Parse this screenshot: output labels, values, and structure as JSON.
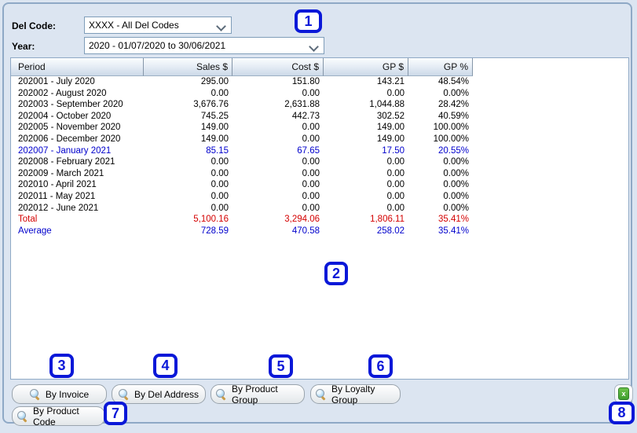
{
  "filters": {
    "del_code_label": "Del Code:",
    "del_code_value": "XXXX - All Del Codes",
    "year_label": "Year:",
    "year_value": "2020 - 01/07/2020 to 30/06/2021"
  },
  "table": {
    "headers": [
      "Period",
      "Sales $",
      "Cost $",
      "GP $",
      "GP %"
    ],
    "rows": [
      {
        "period": "202001 - July 2020",
        "sales": "295.00",
        "cost": "151.80",
        "gp": "143.21",
        "gppct": "48.54%",
        "style": "normal"
      },
      {
        "period": "202002 - August 2020",
        "sales": "0.00",
        "cost": "0.00",
        "gp": "0.00",
        "gppct": "0.00%",
        "style": "normal"
      },
      {
        "period": "202003 - September 2020",
        "sales": "3,676.76",
        "cost": "2,631.88",
        "gp": "1,044.88",
        "gppct": "28.42%",
        "style": "normal"
      },
      {
        "period": "202004 - October 2020",
        "sales": "745.25",
        "cost": "442.73",
        "gp": "302.52",
        "gppct": "40.59%",
        "style": "normal"
      },
      {
        "period": "202005 - November 2020",
        "sales": "149.00",
        "cost": "0.00",
        "gp": "149.00",
        "gppct": "100.00%",
        "style": "normal"
      },
      {
        "period": "202006 - December 2020",
        "sales": "149.00",
        "cost": "0.00",
        "gp": "149.00",
        "gppct": "100.00%",
        "style": "normal"
      },
      {
        "period": "202007 - January 2021",
        "sales": "85.15",
        "cost": "67.65",
        "gp": "17.50",
        "gppct": "20.55%",
        "style": "blue"
      },
      {
        "period": "202008 - February 2021",
        "sales": "0.00",
        "cost": "0.00",
        "gp": "0.00",
        "gppct": "0.00%",
        "style": "normal"
      },
      {
        "period": "202009 - March 2021",
        "sales": "0.00",
        "cost": "0.00",
        "gp": "0.00",
        "gppct": "0.00%",
        "style": "normal"
      },
      {
        "period": "202010 - April 2021",
        "sales": "0.00",
        "cost": "0.00",
        "gp": "0.00",
        "gppct": "0.00%",
        "style": "normal"
      },
      {
        "period": "202011 - May 2021",
        "sales": "0.00",
        "cost": "0.00",
        "gp": "0.00",
        "gppct": "0.00%",
        "style": "normal"
      },
      {
        "period": "202012 - June 2021",
        "sales": "0.00",
        "cost": "0.00",
        "gp": "0.00",
        "gppct": "0.00%",
        "style": "normal"
      },
      {
        "period": "Total",
        "sales": "5,100.16",
        "cost": "3,294.06",
        "gp": "1,806.11",
        "gppct": "35.41%",
        "style": "red"
      },
      {
        "period": "Average",
        "sales": "728.59",
        "cost": "470.58",
        "gp": "258.02",
        "gppct": "35.41%",
        "style": "blue"
      }
    ]
  },
  "actions": {
    "by_invoice": "By Invoice",
    "by_del_address": "By Del Address",
    "by_product_group": "By Product Group",
    "by_loyalty_group": "By Loyalty Group",
    "by_product_code": "By Product Code"
  },
  "icons": {
    "excel_glyph": "x"
  },
  "annotations": [
    "1",
    "2",
    "3",
    "4",
    "5",
    "6",
    "7",
    "8"
  ],
  "colors": {
    "panel_bg": "#dce5f1",
    "row_blue": "#0000cc",
    "row_red": "#d40000",
    "annotation_blue": "#0a18d8",
    "excel_green": "#4ca63c"
  }
}
